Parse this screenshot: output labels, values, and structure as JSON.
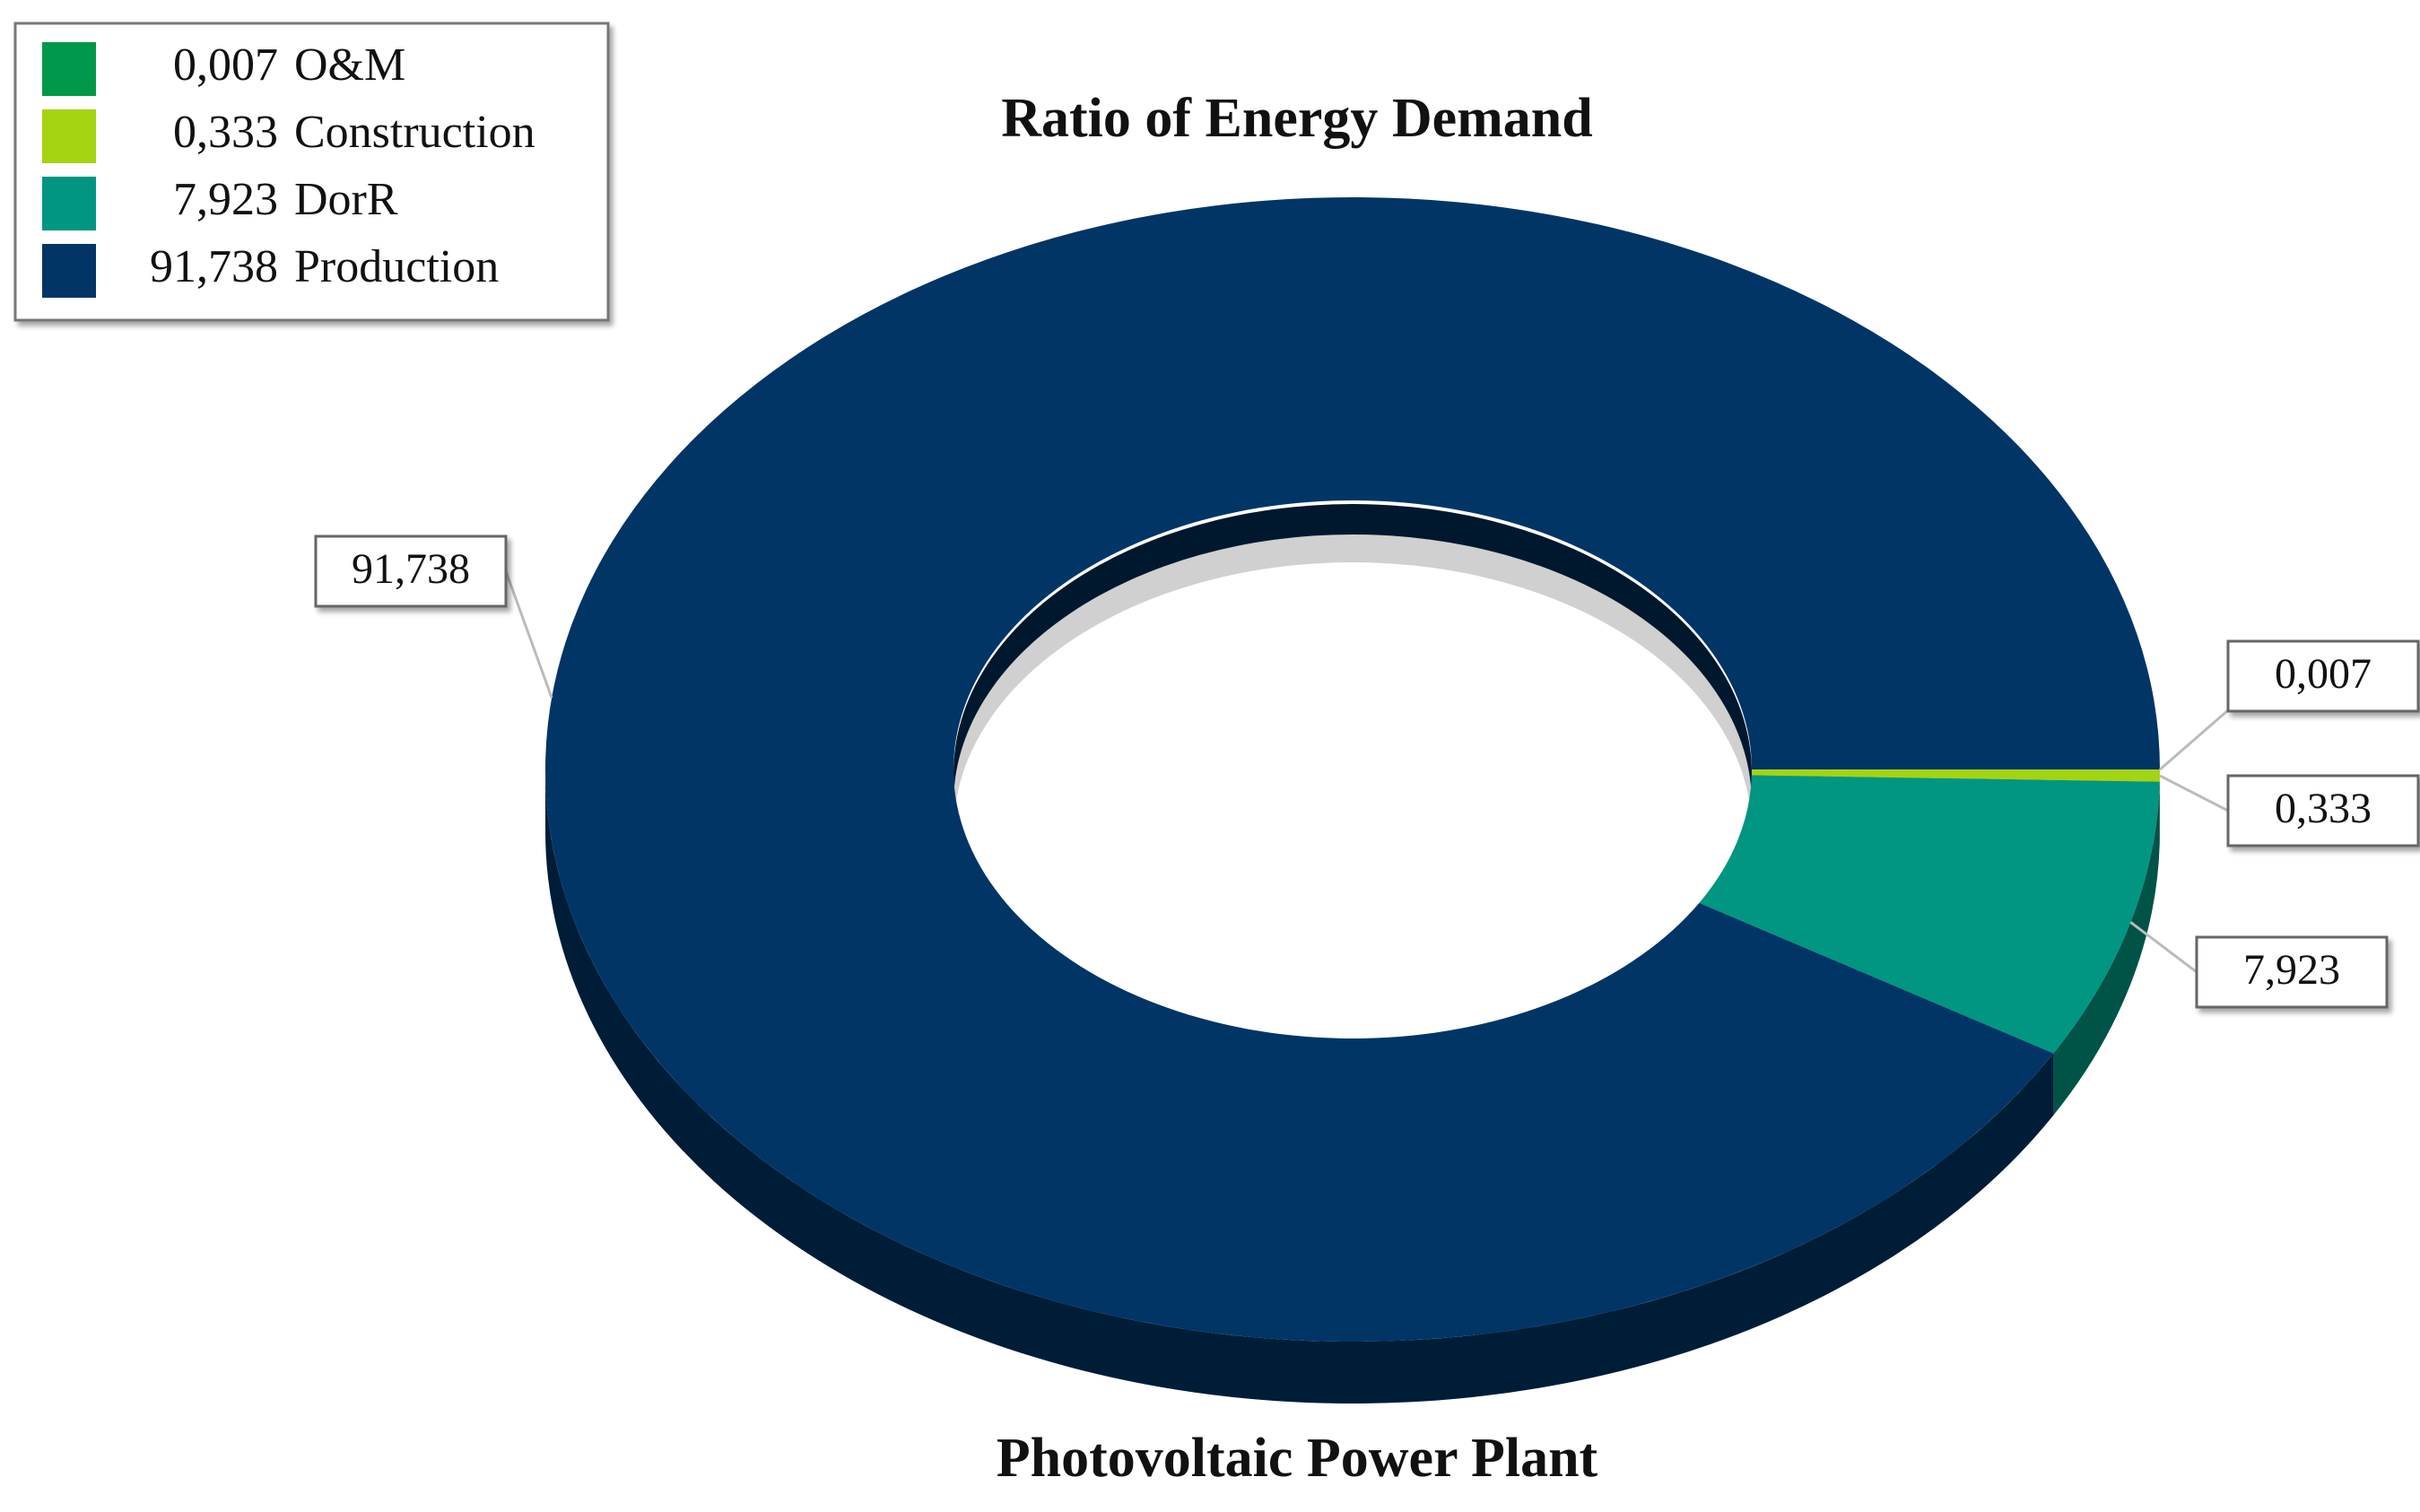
{
  "chart_data": {
    "type": "donut3d",
    "title": "Ratio of Energy Demand",
    "subtitle": "Photovoltaic Power Plant",
    "categories": [
      "O&M",
      "Construction",
      "DorR",
      "Production"
    ],
    "values": [
      0.007,
      0.333,
      7.923,
      91.738
    ],
    "value_labels": [
      "0,007",
      "0,333",
      "7,923",
      "91,738"
    ],
    "colors": [
      "#00984a",
      "#a4d40f",
      "#009681",
      "#003566"
    ],
    "legend": "top-left"
  }
}
